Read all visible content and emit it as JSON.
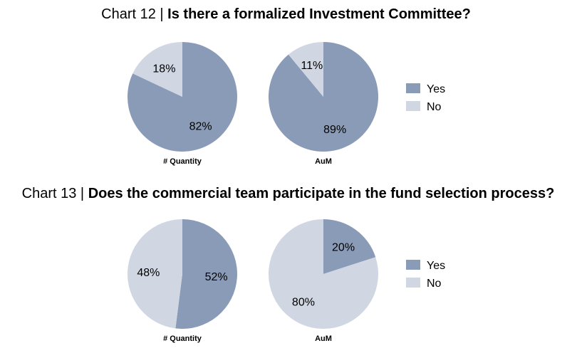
{
  "colors": {
    "yes": "#8a9bb8",
    "no": "#d0d7e3"
  },
  "legend": [
    "Yes",
    "No"
  ],
  "chart_data": [
    {
      "type": "pie",
      "title_prefix": "Chart 12 | ",
      "title": "Is there a formalized Investment Committee?",
      "pies": [
        {
          "label": "# Quantity",
          "values": [
            82,
            18
          ],
          "value_labels": [
            "82%",
            "18%"
          ],
          "categories": [
            "Yes",
            "No"
          ]
        },
        {
          "label": "AuM",
          "values": [
            89,
            11
          ],
          "value_labels": [
            "89%",
            "11%"
          ],
          "categories": [
            "Yes",
            "No"
          ]
        }
      ],
      "legend": [
        "Yes",
        "No"
      ],
      "legend_position": "right"
    },
    {
      "type": "pie",
      "title_prefix": "Chart 13 | ",
      "title": "Does the commercial team participate in the fund selection process?",
      "pies": [
        {
          "label": "# Quantity",
          "values": [
            52,
            48
          ],
          "value_labels": [
            "52%",
            "48%"
          ],
          "categories": [
            "Yes",
            "No"
          ]
        },
        {
          "label": "AuM",
          "values": [
            20,
            80
          ],
          "value_labels": [
            "20%",
            "80%"
          ],
          "categories": [
            "Yes",
            "No"
          ]
        }
      ],
      "legend": [
        "Yes",
        "No"
      ],
      "legend_position": "right"
    }
  ]
}
